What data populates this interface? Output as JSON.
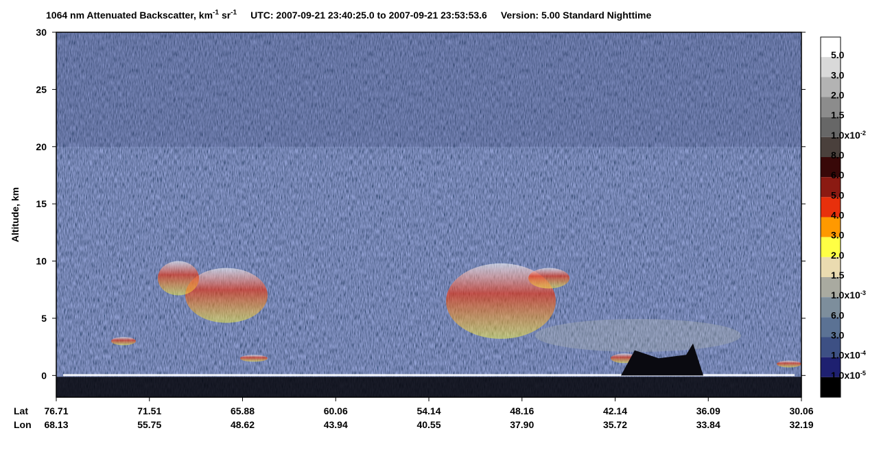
{
  "chart_data": {
    "type": "heatmap",
    "title": {
      "main": "1064 nm Attenuated Backscatter, km",
      "unit1_exp": "-1",
      "unit2": "sr",
      "unit2_exp": "-1",
      "time": "UTC:  2007-09-21 23:40:25.0  to  2007-09-21 23:53:53.6",
      "version": "Version: 5.00  Standard  Nighttime"
    },
    "y_label": "Altitude, km",
    "ylim": [
      -1.9,
      30
    ],
    "yticks": [
      0,
      5,
      10,
      15,
      20,
      25,
      30
    ],
    "x_row_labels": [
      "Lat",
      "Lon"
    ],
    "lat": [
      "76.71",
      "71.51",
      "65.88",
      "60.06",
      "54.14",
      "48.16",
      "42.14",
      "36.09",
      "30.06"
    ],
    "lon": [
      "68.13",
      "55.75",
      "48.62",
      "43.94",
      "40.55",
      "37.90",
      "35.72",
      "33.84",
      "32.19"
    ],
    "colorbar": {
      "colors": [
        "#ffffff",
        "#d9d9d9",
        "#b3b3b3",
        "#8c8c8c",
        "#676767",
        "#4a403c",
        "#380808",
        "#8b1a12",
        "#e8300c",
        "#ff9900",
        "#ffff44",
        "#eadbb0",
        "#a9aaa0",
        "#7d8e9c",
        "#5b7294",
        "#3d5084",
        "#1e2070",
        "#000000"
      ],
      "labels": [
        {
          "text": "5.0"
        },
        {
          "text": "3.0"
        },
        {
          "text": "2.0"
        },
        {
          "text": "1.5"
        },
        {
          "text": "1.0x10",
          "exp": "-2"
        },
        {
          "text": "8.0"
        },
        {
          "text": "6.0"
        },
        {
          "text": "5.0"
        },
        {
          "text": "4.0"
        },
        {
          "text": "3.0"
        },
        {
          "text": "2.0"
        },
        {
          "text": "1.5"
        },
        {
          "text": "1.0x10",
          "exp": "-3"
        },
        {
          "text": "6.0"
        },
        {
          "text": "3.0"
        },
        {
          "text": "1.0x10",
          "exp": "-4"
        },
        {
          "text": "1.0x10",
          "exp": "-5"
        }
      ]
    }
  }
}
